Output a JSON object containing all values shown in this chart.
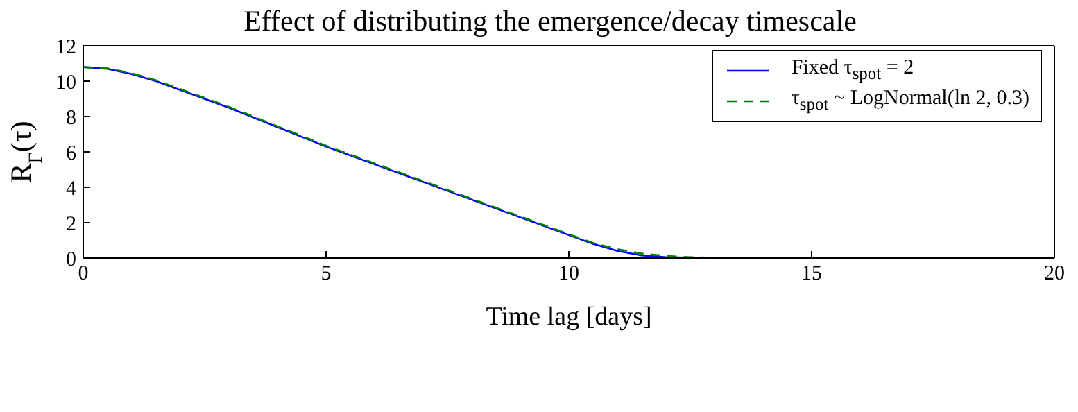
{
  "chart_data": {
    "type": "line",
    "title": "Effect of distributing the emergence/decay timescale",
    "xlabel": "Time lag [days]",
    "ylabel": "R$_{Γ}$(τ)",
    "series": [
      {
        "name": "Fixed τ$_{spot}$ = 2",
        "color": "#0000ff",
        "line_style": "solid",
        "x": [
          0,
          0.5,
          1,
          1.5,
          2,
          3,
          4,
          5,
          6,
          7,
          8,
          9,
          10,
          10.5,
          11,
          11.5,
          12,
          13,
          15,
          20
        ],
        "values": [
          10.8,
          10.7,
          10.4,
          10.0,
          9.5,
          8.5,
          7.4,
          6.3,
          5.3,
          4.3,
          3.3,
          2.3,
          1.3,
          0.8,
          0.4,
          0.15,
          0.05,
          0,
          0,
          0
        ]
      },
      {
        "name": "τ$_{spot}$ ~ LogNormal(ln 2, 0.3)",
        "color": "#008000",
        "line_style": "dashed",
        "x": [
          0,
          0.5,
          1,
          1.5,
          2,
          3,
          4,
          5,
          6,
          7,
          8,
          9,
          10,
          10.5,
          11,
          11.5,
          12,
          12.5,
          13,
          14,
          15,
          20
        ],
        "values": [
          10.8,
          10.72,
          10.45,
          10.05,
          9.55,
          8.55,
          7.45,
          6.35,
          5.35,
          4.35,
          3.35,
          2.35,
          1.35,
          0.85,
          0.5,
          0.25,
          0.12,
          0.05,
          0.02,
          0,
          0,
          0
        ]
      }
    ],
    "xlim": [
      0,
      20
    ],
    "xticks": [
      0,
      5,
      10,
      15,
      20
    ],
    "ylim": [
      0,
      12
    ],
    "yticks": [
      0,
      2,
      4,
      6,
      8,
      10,
      12
    ],
    "grid": false,
    "legend": "top right",
    "marker": "none"
  }
}
